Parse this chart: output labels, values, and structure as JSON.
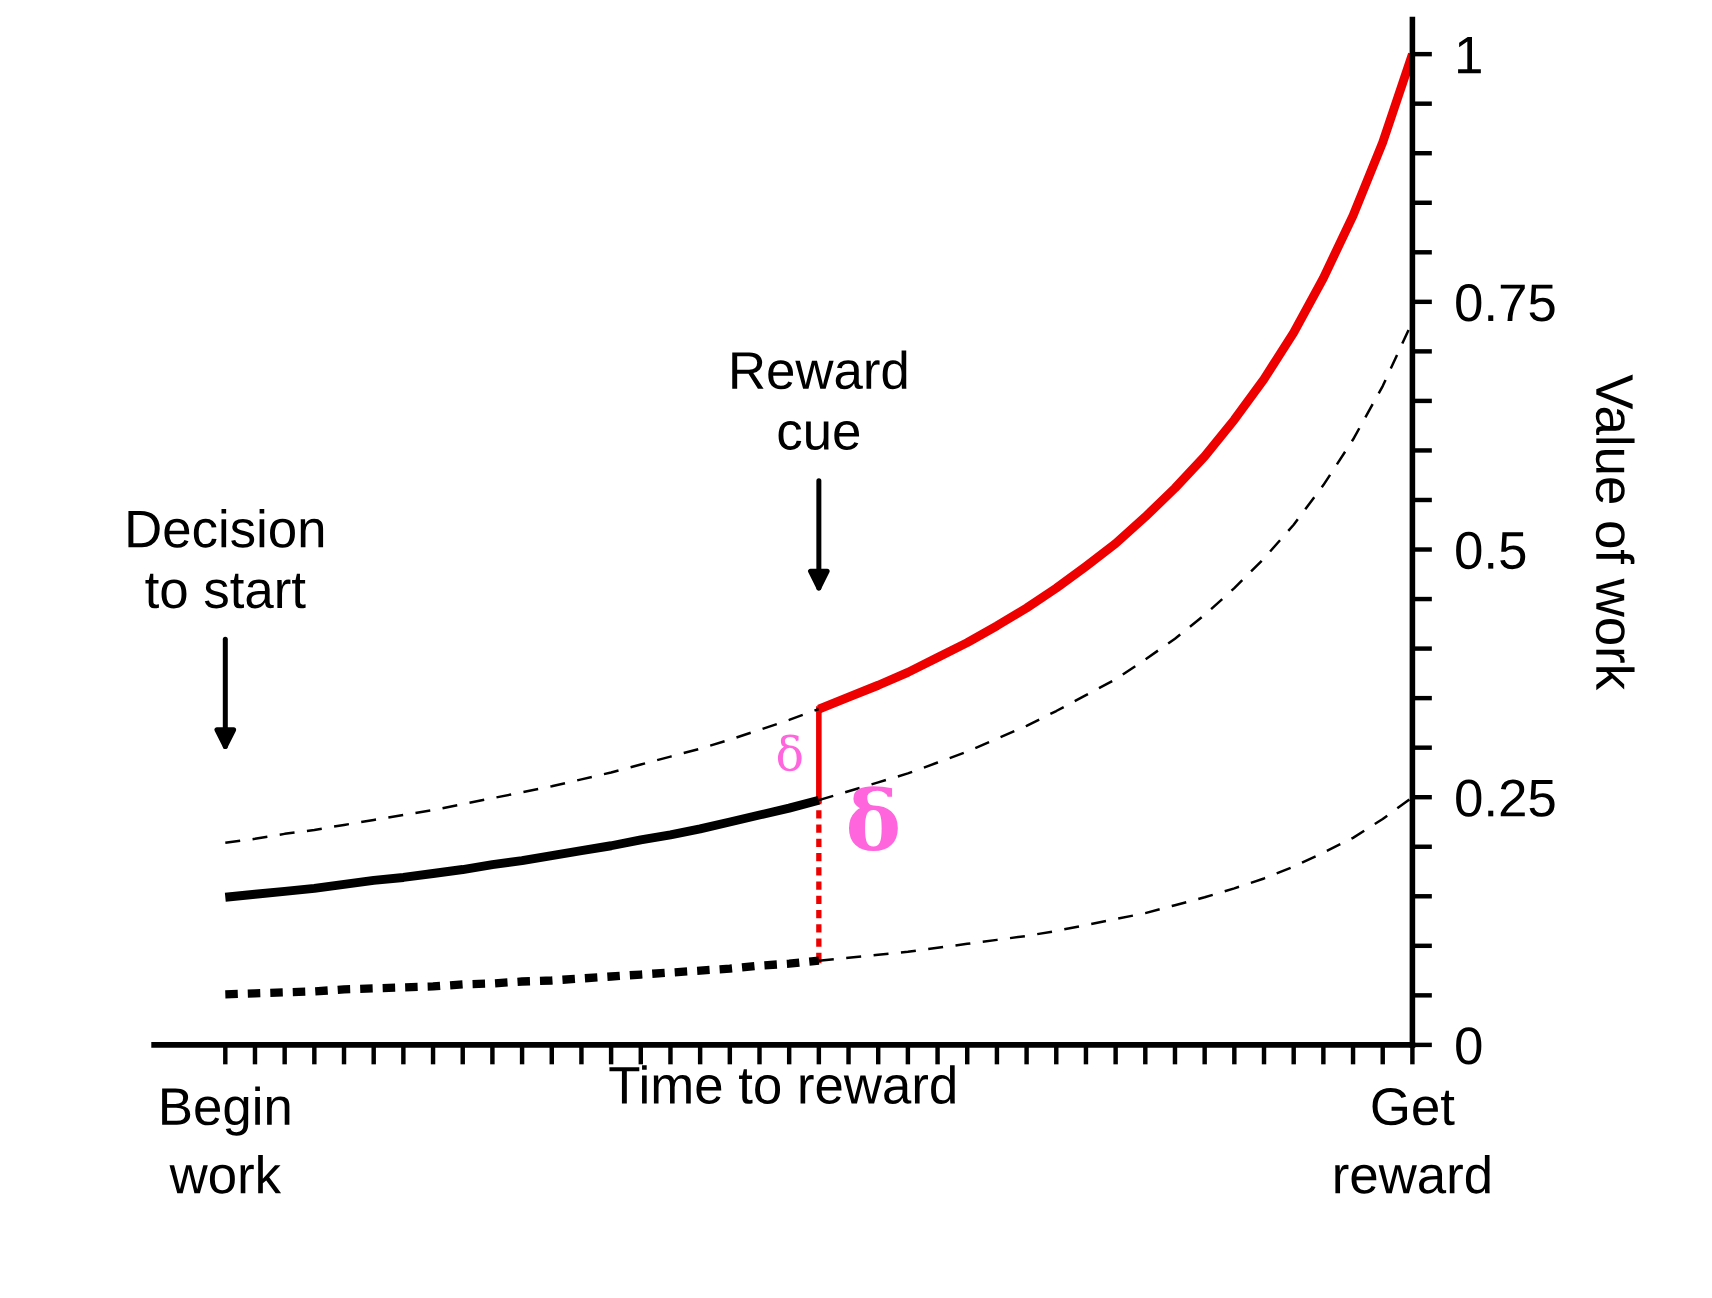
{
  "chart_data": {
    "type": "line",
    "xlabel": "Time to reward",
    "ylabel": "Value of work",
    "categories": [
      "Begin\nwork",
      null,
      null,
      null,
      null,
      null,
      null,
      null,
      null,
      null,
      null,
      null,
      null,
      null,
      null,
      null,
      null,
      null,
      null,
      null,
      null,
      null,
      null,
      null,
      null,
      null,
      null,
      null,
      null,
      null,
      null,
      null,
      null,
      null,
      null,
      null,
      null,
      null,
      null,
      null,
      "Get\nreward"
    ],
    "ylim": [
      0,
      1.035
    ],
    "yticks": [
      0,
      {
        "value": 0.05,
        "label": null
      },
      {
        "value": 0.1,
        "label": null
      },
      {
        "value": 0.15,
        "label": null
      },
      {
        "value": 0.2,
        "label": null
      },
      0.25,
      {
        "value": 0.3,
        "label": null
      },
      {
        "value": 0.35,
        "label": null
      },
      {
        "value": 0.4,
        "label": null
      },
      {
        "value": 0.45,
        "label": null
      },
      0.5,
      {
        "value": 0.55,
        "label": null
      },
      {
        "value": 0.6,
        "label": null
      },
      {
        "value": 0.65,
        "label": null
      },
      {
        "value": 0.7,
        "label": null
      },
      0.75,
      {
        "value": 0.8,
        "label": null
      },
      {
        "value": 0.85,
        "label": null
      },
      {
        "value": 0.9,
        "label": null
      },
      {
        "value": 0.95,
        "label": null
      },
      1
    ],
    "grid": false,
    "marker": "none",
    "series": [
      {
        "color": "#000000",
        "line_style": "dashed",
        "values": [
          0.204,
          0.208,
          0.213,
          0.217,
          0.222,
          0.227,
          0.232,
          0.237,
          0.243,
          0.249,
          0.255,
          0.261,
          0.268,
          0.275,
          0.283,
          0.291,
          0.299,
          0.308,
          0.318,
          0.328,
          0.339,
          null,
          null,
          null,
          null,
          null,
          null,
          null,
          null,
          null,
          null,
          null,
          null,
          null,
          null,
          null,
          null,
          null,
          null,
          null,
          null
        ]
      },
      {
        "color": "#ee0000",
        "line_style": "solid",
        "values": [
          null,
          null,
          null,
          null,
          null,
          null,
          null,
          null,
          null,
          null,
          null,
          null,
          null,
          null,
          null,
          null,
          null,
          null,
          null,
          null,
          0.339,
          0.351,
          0.363,
          0.376,
          0.391,
          0.406,
          0.423,
          0.441,
          0.461,
          0.483,
          0.506,
          0.533,
          0.562,
          0.594,
          0.631,
          0.672,
          0.719,
          0.774,
          0.837,
          0.911,
          1
        ]
      },
      {
        "color": "#000000",
        "line_style": "solid",
        "values": [
          0.149,
          0.152,
          0.155,
          0.158,
          0.162,
          0.166,
          0.169,
          0.173,
          0.177,
          0.182,
          0.186,
          0.191,
          0.196,
          0.201,
          0.207,
          0.212,
          0.218,
          0.225,
          0.232,
          0.239,
          0.247,
          null,
          null,
          null,
          null,
          null,
          null,
          null,
          null,
          null,
          null,
          null,
          null,
          null,
          null,
          null,
          null,
          null,
          null,
          null,
          null
        ]
      },
      {
        "color": "#000000",
        "line_style": "dashed",
        "values": [
          null,
          null,
          null,
          null,
          null,
          null,
          null,
          null,
          null,
          null,
          null,
          null,
          null,
          null,
          null,
          null,
          null,
          null,
          null,
          null,
          0.247,
          0.256,
          0.265,
          0.274,
          0.285,
          0.296,
          0.309,
          0.322,
          0.337,
          0.353,
          0.369,
          0.389,
          0.41,
          0.434,
          0.461,
          0.491,
          0.525,
          0.565,
          0.611,
          0.665,
          0.73
        ]
      },
      {
        "color": "#000000",
        "line_style": "dotted",
        "values": [
          0.051,
          0.052,
          0.053,
          0.054,
          0.056,
          0.057,
          0.058,
          0.059,
          0.061,
          0.062,
          0.064,
          0.065,
          0.067,
          0.069,
          0.071,
          0.073,
          0.075,
          0.077,
          0.08,
          0.082,
          0.085,
          null,
          null,
          null,
          null,
          null,
          null,
          null,
          null,
          null,
          null,
          null,
          null,
          null,
          null,
          null,
          null,
          null,
          null,
          null,
          null
        ]
      },
      {
        "color": "#000000",
        "line_style": "dashed",
        "values": [
          null,
          null,
          null,
          null,
          null,
          null,
          null,
          null,
          null,
          null,
          null,
          null,
          null,
          null,
          null,
          null,
          null,
          null,
          null,
          null,
          0.085,
          0.088,
          0.091,
          0.094,
          0.098,
          0.102,
          0.106,
          0.11,
          0.115,
          0.121,
          0.127,
          0.133,
          0.141,
          0.149,
          0.158,
          0.168,
          0.18,
          0.194,
          0.209,
          0.228,
          0.25
        ]
      },
      {
        "type": "bar",
        "color": "#ee0000",
        "line_style": "solid",
        "base": [
          null,
          null,
          null,
          null,
          null,
          null,
          null,
          null,
          null,
          null,
          null,
          null,
          null,
          null,
          null,
          null,
          null,
          null,
          null,
          null,
          0.247,
          null,
          null,
          null,
          null,
          null,
          null,
          null,
          null,
          null,
          null,
          null,
          null,
          null,
          null,
          null,
          null,
          null,
          null,
          null,
          null
        ],
        "values": [
          null,
          null,
          null,
          null,
          null,
          null,
          null,
          null,
          null,
          null,
          null,
          null,
          null,
          null,
          null,
          null,
          null,
          null,
          null,
          null,
          0.092,
          null,
          null,
          null,
          null,
          null,
          null,
          null,
          null,
          null,
          null,
          null,
          null,
          null,
          null,
          null,
          null,
          null,
          null,
          null,
          null
        ]
      },
      {
        "type": "bar",
        "color": "#ee0000",
        "line_style": "dotted",
        "base": [
          null,
          null,
          null,
          null,
          null,
          null,
          null,
          null,
          null,
          null,
          null,
          null,
          null,
          null,
          null,
          null,
          null,
          null,
          null,
          null,
          0.085,
          null,
          null,
          null,
          null,
          null,
          null,
          null,
          null,
          null,
          null,
          null,
          null,
          null,
          null,
          null,
          null,
          null,
          null,
          null,
          null
        ],
        "values": [
          null,
          null,
          null,
          null,
          null,
          null,
          null,
          null,
          null,
          null,
          null,
          null,
          null,
          null,
          null,
          null,
          null,
          null,
          null,
          null,
          0.162,
          null,
          null,
          null,
          null,
          null,
          null,
          null,
          null,
          null,
          null,
          null,
          null,
          null,
          null,
          null,
          null,
          null,
          null,
          null,
          null
        ]
      }
    ],
    "annotations": [
      "Decision\nto start",
      "Reward\ncue",
      "δ",
      "δ"
    ]
  }
}
